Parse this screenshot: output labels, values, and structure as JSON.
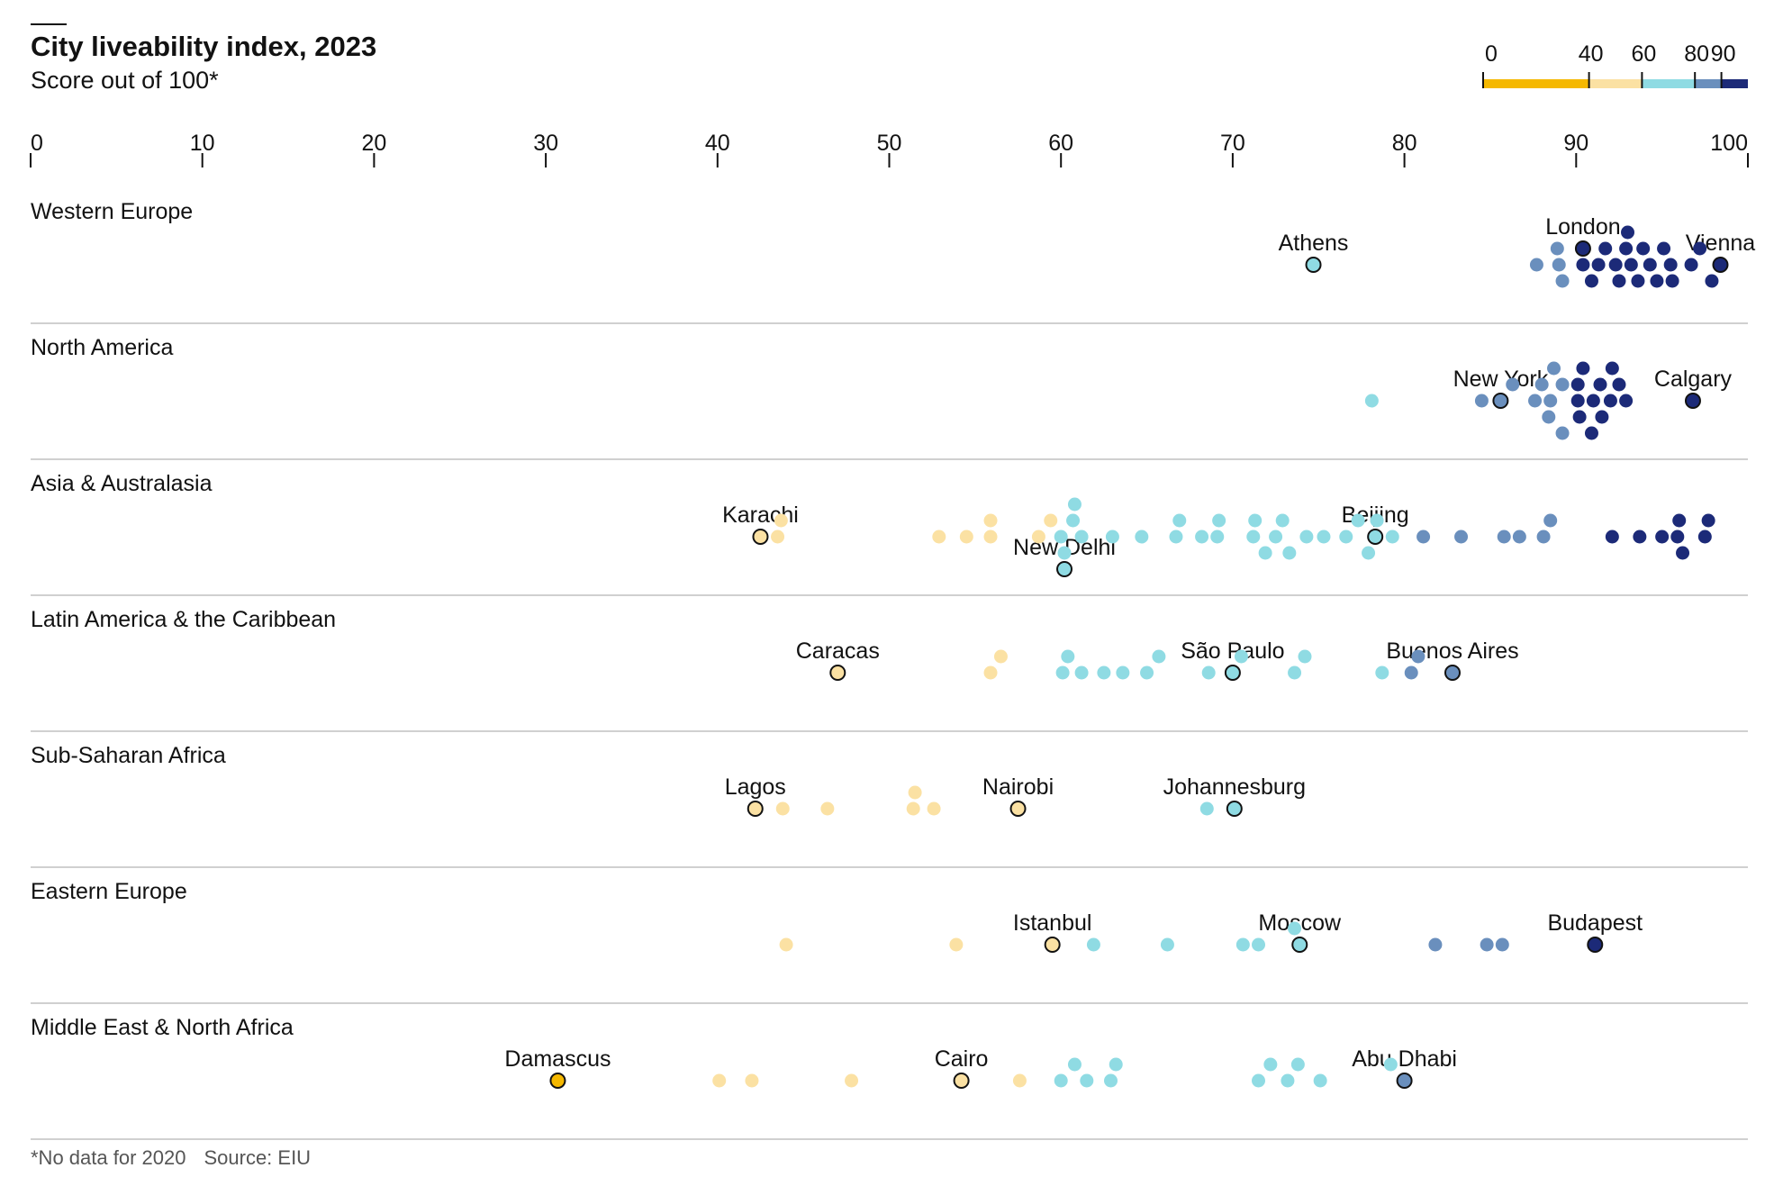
{
  "header": {
    "title": "City liveability index, 2023",
    "subtitle": "Score out of 100*"
  },
  "footer": {
    "note": "*No data for 2020",
    "source": "Source: EIU"
  },
  "chart_data": {
    "type": "scatter",
    "title": "City liveability index, 2023",
    "subtitle": "Score out of 100*",
    "xlim": [
      0,
      100
    ],
    "x_ticks": [
      0,
      10,
      20,
      30,
      40,
      50,
      60,
      70,
      80,
      90,
      100
    ],
    "grid": false,
    "color_scale": {
      "placement": "top-right",
      "labels": [
        "0",
        "40",
        "60",
        "80",
        "90"
      ],
      "bands": [
        {
          "from": 0,
          "to": 40,
          "color": "#f5b800"
        },
        {
          "from": 40,
          "to": 60,
          "color": "#fbe1a3"
        },
        {
          "from": 60,
          "to": 80,
          "color": "#8fdbe3"
        },
        {
          "from": 80,
          "to": 90,
          "color": "#6a8fbd"
        },
        {
          "from": 90,
          "to": 100,
          "color": "#1c2a78"
        }
      ]
    },
    "regions": [
      {
        "name": "Western Europe",
        "labeled": [
          {
            "city": "London",
            "value": 90.4,
            "offset": -1
          },
          {
            "city": "Vienna",
            "value": 98.4,
            "offset": 0
          },
          {
            "city": "Athens",
            "value": 74.7,
            "offset": 0
          }
        ],
        "values": [
          90.4,
          98.4,
          74.7,
          87.7,
          89.0,
          88.9,
          89.2,
          90.4,
          90.9,
          91.3,
          91.7,
          92.3,
          92.5,
          92.9,
          93.0,
          93.2,
          93.6,
          93.9,
          94.3,
          94.7,
          95.1,
          95.5,
          95.6,
          96.7,
          97.2,
          97.9
        ]
      },
      {
        "name": "North America",
        "labeled": [
          {
            "city": "New York",
            "value": 85.6,
            "offset": 0
          },
          {
            "city": "Calgary",
            "value": 96.8,
            "offset": 0
          }
        ],
        "values": [
          85.6,
          96.8,
          78.1,
          84.5,
          86.3,
          87.6,
          88.0,
          88.4,
          88.5,
          88.7,
          89.2,
          89.2,
          90.1,
          90.1,
          90.2,
          90.4,
          90.9,
          91.0,
          91.4,
          91.5,
          92.0,
          92.1,
          92.5,
          92.9
        ]
      },
      {
        "name": "Asia & Australasia",
        "labeled": [
          {
            "city": "Karachi",
            "value": 42.5,
            "offset": 0
          },
          {
            "city": "New Delhi",
            "value": 60.2,
            "offset": 2
          },
          {
            "city": "Beijing",
            "value": 78.3,
            "offset": 0
          }
        ],
        "values": [
          42.5,
          60.2,
          78.3,
          43.5,
          43.7,
          52.9,
          54.5,
          55.9,
          55.9,
          58.7,
          59.4,
          60.0,
          60.2,
          60.7,
          60.8,
          61.2,
          63.0,
          64.7,
          66.7,
          66.9,
          68.2,
          69.1,
          69.2,
          71.2,
          71.3,
          71.9,
          72.5,
          72.9,
          73.3,
          74.3,
          75.3,
          76.6,
          77.3,
          77.9,
          78.4,
          79.3,
          81.1,
          83.3,
          85.8,
          86.7,
          88.1,
          88.5,
          92.1,
          93.7,
          95.0,
          95.9,
          96.0,
          96.2,
          97.5,
          97.7
        ]
      },
      {
        "name": "Latin America & the Caribbean",
        "labeled": [
          {
            "city": "Caracas",
            "value": 47.0,
            "offset": 0
          },
          {
            "city": "São Paulo",
            "value": 70.0,
            "offset": 0
          },
          {
            "city": "Buenos Aires",
            "value": 82.8,
            "offset": 0
          }
        ],
        "values": [
          47.0,
          70.0,
          82.8,
          55.9,
          56.5,
          60.1,
          60.4,
          61.2,
          62.5,
          63.6,
          65.0,
          65.7,
          68.6,
          70.5,
          73.6,
          74.2,
          78.7,
          80.4,
          80.8
        ]
      },
      {
        "name": "Sub-Saharan Africa",
        "labeled": [
          {
            "city": "Lagos",
            "value": 42.2,
            "offset": 0
          },
          {
            "city": "Nairobi",
            "value": 57.5,
            "offset": 0
          },
          {
            "city": "Johannesburg",
            "value": 70.1,
            "offset": 0
          }
        ],
        "values": [
          42.2,
          57.5,
          70.1,
          43.8,
          46.4,
          51.4,
          51.5,
          52.6,
          68.5
        ]
      },
      {
        "name": "Eastern Europe",
        "labeled": [
          {
            "city": "Istanbul",
            "value": 59.5,
            "offset": 0
          },
          {
            "city": "Moscow",
            "value": 73.9,
            "offset": 0
          },
          {
            "city": "Budapest",
            "value": 91.1,
            "offset": 0
          }
        ],
        "values": [
          59.5,
          73.9,
          91.1,
          44.0,
          53.9,
          61.9,
          66.2,
          70.6,
          71.5,
          73.6,
          81.8,
          84.8,
          85.7
        ]
      },
      {
        "name": "Middle East & North Africa",
        "labeled": [
          {
            "city": "Damascus",
            "value": 30.7,
            "offset": 0
          },
          {
            "city": "Cairo",
            "value": 54.2,
            "offset": 0
          },
          {
            "city": "Abu Dhabi",
            "value": 80.0,
            "offset": 0
          }
        ],
        "values": [
          30.7,
          54.2,
          80.0,
          40.1,
          42.0,
          47.8,
          57.6,
          60.0,
          60.8,
          61.5,
          62.9,
          63.2,
          71.5,
          72.2,
          73.2,
          73.8,
          75.1,
          79.2
        ]
      }
    ]
  }
}
